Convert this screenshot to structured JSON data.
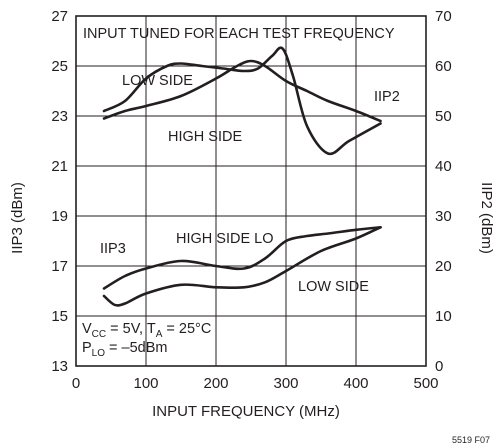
{
  "chart_data": {
    "type": "line",
    "annotation_top": "INPUT TUNED FOR EACH TEST FREQUENCY",
    "xlabel": "INPUT FREQUENCY (MHz)",
    "ylabel_left": "IIP3 (dBm)",
    "ylabel_right": "IIP2 (dBm)",
    "figure_id": "5519 F07",
    "xlim": [
      0,
      500
    ],
    "ylim_left": [
      13,
      27
    ],
    "ylim_right": [
      0,
      70
    ],
    "x_ticks": [
      "0",
      "100",
      "200",
      "300",
      "400",
      "500"
    ],
    "y_left_ticks": [
      "13",
      "15",
      "17",
      "19",
      "21",
      "23",
      "25",
      "27"
    ],
    "y_right_ticks": [
      "0",
      "10",
      "20",
      "30",
      "40",
      "50",
      "60",
      "70"
    ],
    "grid": true,
    "conditions": {
      "vcc_main": "V",
      "vcc_sub": "CC",
      "vcc_value": " = 5V, T",
      "ta_sub": "A",
      "ta_value": " = 25°C",
      "plo_main": "P",
      "plo_sub": "LO",
      "plo_value": " = –5dBm"
    },
    "labels": {
      "low_side_top": "LOW SIDE",
      "high_side_top": "HIGH SIDE",
      "iip2": "IIP2",
      "iip3": "IIP3",
      "high_side_lo": "HIGH SIDE LO",
      "low_side_bottom": "LOW SIDE"
    },
    "series": [
      {
        "axis": "right",
        "x": [
          40,
          70,
          100,
          130,
          150,
          180,
          210,
          240,
          260,
          280,
          295,
          310,
          330,
          360,
          390,
          435
        ],
        "y": [
          51,
          53,
          57.5,
          60,
          60.5,
          60,
          59.5,
          59,
          59.5,
          62,
          63.5,
          58,
          48,
          42.5,
          45,
          48.5
        ]
      },
      {
        "axis": "right",
        "x": [
          40,
          70,
          100,
          150,
          200,
          230,
          250,
          270,
          300,
          330,
          360,
          400,
          435
        ],
        "y": [
          49.5,
          51,
          52,
          54,
          57.5,
          60,
          61,
          60,
          57,
          55,
          53,
          51,
          49
        ]
      },
      {
        "axis": "left",
        "x": [
          40,
          70,
          100,
          150,
          200,
          240,
          270,
          300,
          330,
          360,
          400,
          435
        ],
        "y": [
          16.1,
          16.6,
          16.9,
          17.2,
          17.0,
          16.9,
          17.3,
          18.0,
          18.2,
          18.3,
          18.45,
          18.55
        ]
      },
      {
        "axis": "left",
        "x": [
          40,
          55,
          70,
          100,
          150,
          200,
          240,
          270,
          300,
          350,
          400,
          435
        ],
        "y": [
          15.8,
          15.45,
          15.5,
          15.9,
          16.25,
          16.15,
          16.15,
          16.35,
          16.8,
          17.6,
          18.1,
          18.55
        ]
      }
    ]
  }
}
